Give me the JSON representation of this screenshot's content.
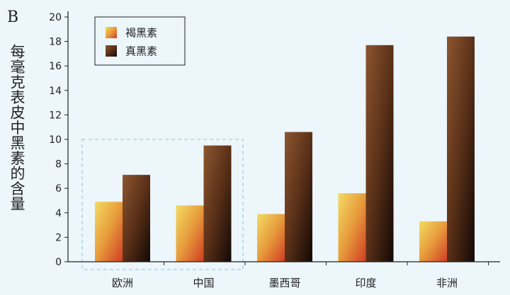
{
  "panel_letter": "B",
  "colors": {
    "background": "#ecf6fb",
    "pheomelanin": [
      "#f3dc62",
      "#e79b3c",
      "#cf3d24"
    ],
    "eumelanin": [
      "#8c5630",
      "#5a3018",
      "#120805"
    ],
    "highlight_box": "#a9d9e6"
  },
  "chart_data": {
    "type": "bar",
    "title": "",
    "xlabel": "",
    "ylabel": "每毫克表皮中黑素的含量",
    "categories": [
      "欧洲",
      "中国",
      "墨西哥",
      "印度",
      "非洲"
    ],
    "series": [
      {
        "name": "褐黑素",
        "values": [
          4.9,
          4.6,
          3.9,
          5.6,
          3.3
        ]
      },
      {
        "name": "真黑素",
        "values": [
          7.1,
          9.5,
          10.6,
          17.7,
          18.4
        ]
      }
    ],
    "ylim": [
      0,
      20
    ],
    "yticks": [
      0,
      2,
      4,
      6,
      8,
      10,
      12,
      14,
      16,
      18,
      20
    ],
    "grid": false,
    "legend_position": "top-left",
    "highlight": {
      "categories": [
        "欧洲",
        "中国"
      ],
      "style": "dashed-box"
    }
  }
}
